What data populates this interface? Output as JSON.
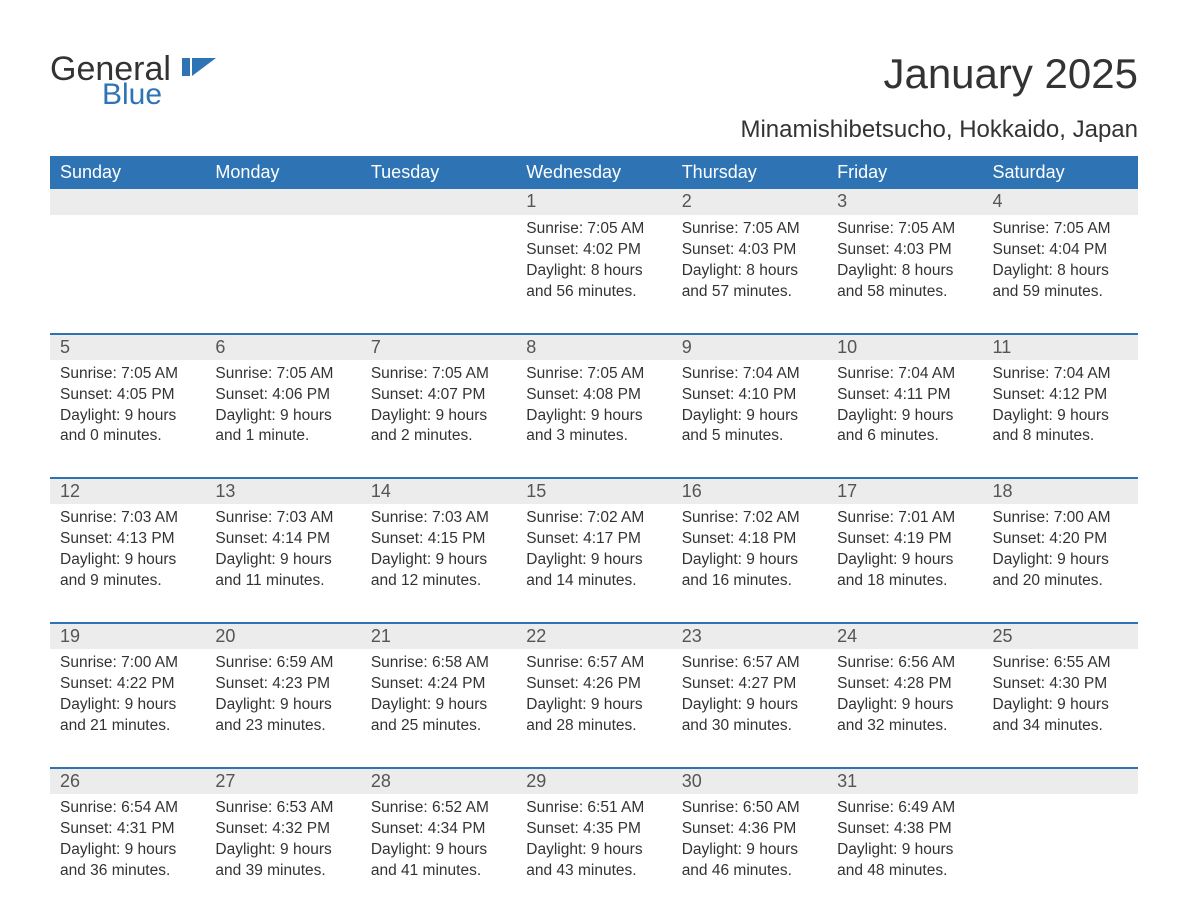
{
  "brand": {
    "part1": "General",
    "part2": "Blue",
    "accent": "#2e74b5"
  },
  "title": "January 2025",
  "location": "Minamishibetsucho, Hokkaido, Japan",
  "colors": {
    "header_bg": "#2e74b5",
    "header_text": "#ffffff",
    "daynum_bg": "#ececec",
    "text": "#333333",
    "page_bg": "#ffffff"
  },
  "typography": {
    "title_fontsize": 42,
    "location_fontsize": 24,
    "header_fontsize": 18,
    "cell_fontsize": 15.5
  },
  "day_headers": [
    "Sunday",
    "Monday",
    "Tuesday",
    "Wednesday",
    "Thursday",
    "Friday",
    "Saturday"
  ],
  "weeks": [
    [
      null,
      null,
      null,
      {
        "n": "1",
        "sunrise": "Sunrise: 7:05 AM",
        "sunset": "Sunset: 4:02 PM",
        "d1": "Daylight: 8 hours",
        "d2": "and 56 minutes."
      },
      {
        "n": "2",
        "sunrise": "Sunrise: 7:05 AM",
        "sunset": "Sunset: 4:03 PM",
        "d1": "Daylight: 8 hours",
        "d2": "and 57 minutes."
      },
      {
        "n": "3",
        "sunrise": "Sunrise: 7:05 AM",
        "sunset": "Sunset: 4:03 PM",
        "d1": "Daylight: 8 hours",
        "d2": "and 58 minutes."
      },
      {
        "n": "4",
        "sunrise": "Sunrise: 7:05 AM",
        "sunset": "Sunset: 4:04 PM",
        "d1": "Daylight: 8 hours",
        "d2": "and 59 minutes."
      }
    ],
    [
      {
        "n": "5",
        "sunrise": "Sunrise: 7:05 AM",
        "sunset": "Sunset: 4:05 PM",
        "d1": "Daylight: 9 hours",
        "d2": "and 0 minutes."
      },
      {
        "n": "6",
        "sunrise": "Sunrise: 7:05 AM",
        "sunset": "Sunset: 4:06 PM",
        "d1": "Daylight: 9 hours",
        "d2": "and 1 minute."
      },
      {
        "n": "7",
        "sunrise": "Sunrise: 7:05 AM",
        "sunset": "Sunset: 4:07 PM",
        "d1": "Daylight: 9 hours",
        "d2": "and 2 minutes."
      },
      {
        "n": "8",
        "sunrise": "Sunrise: 7:05 AM",
        "sunset": "Sunset: 4:08 PM",
        "d1": "Daylight: 9 hours",
        "d2": "and 3 minutes."
      },
      {
        "n": "9",
        "sunrise": "Sunrise: 7:04 AM",
        "sunset": "Sunset: 4:10 PM",
        "d1": "Daylight: 9 hours",
        "d2": "and 5 minutes."
      },
      {
        "n": "10",
        "sunrise": "Sunrise: 7:04 AM",
        "sunset": "Sunset: 4:11 PM",
        "d1": "Daylight: 9 hours",
        "d2": "and 6 minutes."
      },
      {
        "n": "11",
        "sunrise": "Sunrise: 7:04 AM",
        "sunset": "Sunset: 4:12 PM",
        "d1": "Daylight: 9 hours",
        "d2": "and 8 minutes."
      }
    ],
    [
      {
        "n": "12",
        "sunrise": "Sunrise: 7:03 AM",
        "sunset": "Sunset: 4:13 PM",
        "d1": "Daylight: 9 hours",
        "d2": "and 9 minutes."
      },
      {
        "n": "13",
        "sunrise": "Sunrise: 7:03 AM",
        "sunset": "Sunset: 4:14 PM",
        "d1": "Daylight: 9 hours",
        "d2": "and 11 minutes."
      },
      {
        "n": "14",
        "sunrise": "Sunrise: 7:03 AM",
        "sunset": "Sunset: 4:15 PM",
        "d1": "Daylight: 9 hours",
        "d2": "and 12 minutes."
      },
      {
        "n": "15",
        "sunrise": "Sunrise: 7:02 AM",
        "sunset": "Sunset: 4:17 PM",
        "d1": "Daylight: 9 hours",
        "d2": "and 14 minutes."
      },
      {
        "n": "16",
        "sunrise": "Sunrise: 7:02 AM",
        "sunset": "Sunset: 4:18 PM",
        "d1": "Daylight: 9 hours",
        "d2": "and 16 minutes."
      },
      {
        "n": "17",
        "sunrise": "Sunrise: 7:01 AM",
        "sunset": "Sunset: 4:19 PM",
        "d1": "Daylight: 9 hours",
        "d2": "and 18 minutes."
      },
      {
        "n": "18",
        "sunrise": "Sunrise: 7:00 AM",
        "sunset": "Sunset: 4:20 PM",
        "d1": "Daylight: 9 hours",
        "d2": "and 20 minutes."
      }
    ],
    [
      {
        "n": "19",
        "sunrise": "Sunrise: 7:00 AM",
        "sunset": "Sunset: 4:22 PM",
        "d1": "Daylight: 9 hours",
        "d2": "and 21 minutes."
      },
      {
        "n": "20",
        "sunrise": "Sunrise: 6:59 AM",
        "sunset": "Sunset: 4:23 PM",
        "d1": "Daylight: 9 hours",
        "d2": "and 23 minutes."
      },
      {
        "n": "21",
        "sunrise": "Sunrise: 6:58 AM",
        "sunset": "Sunset: 4:24 PM",
        "d1": "Daylight: 9 hours",
        "d2": "and 25 minutes."
      },
      {
        "n": "22",
        "sunrise": "Sunrise: 6:57 AM",
        "sunset": "Sunset: 4:26 PM",
        "d1": "Daylight: 9 hours",
        "d2": "and 28 minutes."
      },
      {
        "n": "23",
        "sunrise": "Sunrise: 6:57 AM",
        "sunset": "Sunset: 4:27 PM",
        "d1": "Daylight: 9 hours",
        "d2": "and 30 minutes."
      },
      {
        "n": "24",
        "sunrise": "Sunrise: 6:56 AM",
        "sunset": "Sunset: 4:28 PM",
        "d1": "Daylight: 9 hours",
        "d2": "and 32 minutes."
      },
      {
        "n": "25",
        "sunrise": "Sunrise: 6:55 AM",
        "sunset": "Sunset: 4:30 PM",
        "d1": "Daylight: 9 hours",
        "d2": "and 34 minutes."
      }
    ],
    [
      {
        "n": "26",
        "sunrise": "Sunrise: 6:54 AM",
        "sunset": "Sunset: 4:31 PM",
        "d1": "Daylight: 9 hours",
        "d2": "and 36 minutes."
      },
      {
        "n": "27",
        "sunrise": "Sunrise: 6:53 AM",
        "sunset": "Sunset: 4:32 PM",
        "d1": "Daylight: 9 hours",
        "d2": "and 39 minutes."
      },
      {
        "n": "28",
        "sunrise": "Sunrise: 6:52 AM",
        "sunset": "Sunset: 4:34 PM",
        "d1": "Daylight: 9 hours",
        "d2": "and 41 minutes."
      },
      {
        "n": "29",
        "sunrise": "Sunrise: 6:51 AM",
        "sunset": "Sunset: 4:35 PM",
        "d1": "Daylight: 9 hours",
        "d2": "and 43 minutes."
      },
      {
        "n": "30",
        "sunrise": "Sunrise: 6:50 AM",
        "sunset": "Sunset: 4:36 PM",
        "d1": "Daylight: 9 hours",
        "d2": "and 46 minutes."
      },
      {
        "n": "31",
        "sunrise": "Sunrise: 6:49 AM",
        "sunset": "Sunset: 4:38 PM",
        "d1": "Daylight: 9 hours",
        "d2": "and 48 minutes."
      },
      null
    ]
  ]
}
